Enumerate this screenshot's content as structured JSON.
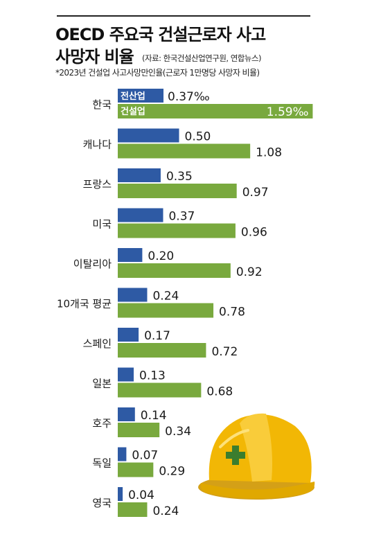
{
  "header": {
    "title_line1": "OECD 주요국 건설근로자 사고",
    "title_line2": "사망자 비율",
    "source": "(자료: 한국건설산업연구원, 연합뉴스)",
    "note": "*2023년 건설업 사고사망만인율(근로자 1만명당 사망자 비율)"
  },
  "colors": {
    "all_industries": "#2e5aa4",
    "construction": "#79a93e"
  },
  "chart_data": {
    "type": "bar",
    "orientation": "horizontal",
    "unit": "‰",
    "categories": [
      "한국",
      "캐나다",
      "프랑스",
      "미국",
      "이탈리아",
      "10개국 평균",
      "스페인",
      "일본",
      "호주",
      "독일",
      "영국"
    ],
    "series": [
      {
        "name": "전산업",
        "values": [
          0.37,
          0.5,
          0.35,
          0.37,
          0.2,
          0.24,
          0.17,
          0.13,
          0.14,
          0.07,
          0.04
        ],
        "labels": [
          "0.37‰",
          "0.50",
          "0.35",
          "0.37",
          "0.20",
          "0.24",
          "0.17",
          "0.13",
          "0.14",
          "0.07",
          "0.04"
        ]
      },
      {
        "name": "건설업",
        "values": [
          1.59,
          1.08,
          0.97,
          0.96,
          0.92,
          0.78,
          0.72,
          0.68,
          0.34,
          0.29,
          0.24
        ],
        "labels": [
          "1.59‰",
          "1.08",
          "0.97",
          "0.96",
          "0.92",
          "0.78",
          "0.72",
          "0.68",
          "0.34",
          "0.29",
          "0.24"
        ]
      }
    ],
    "legend_placement": "inside-first-row",
    "grid": false
  }
}
